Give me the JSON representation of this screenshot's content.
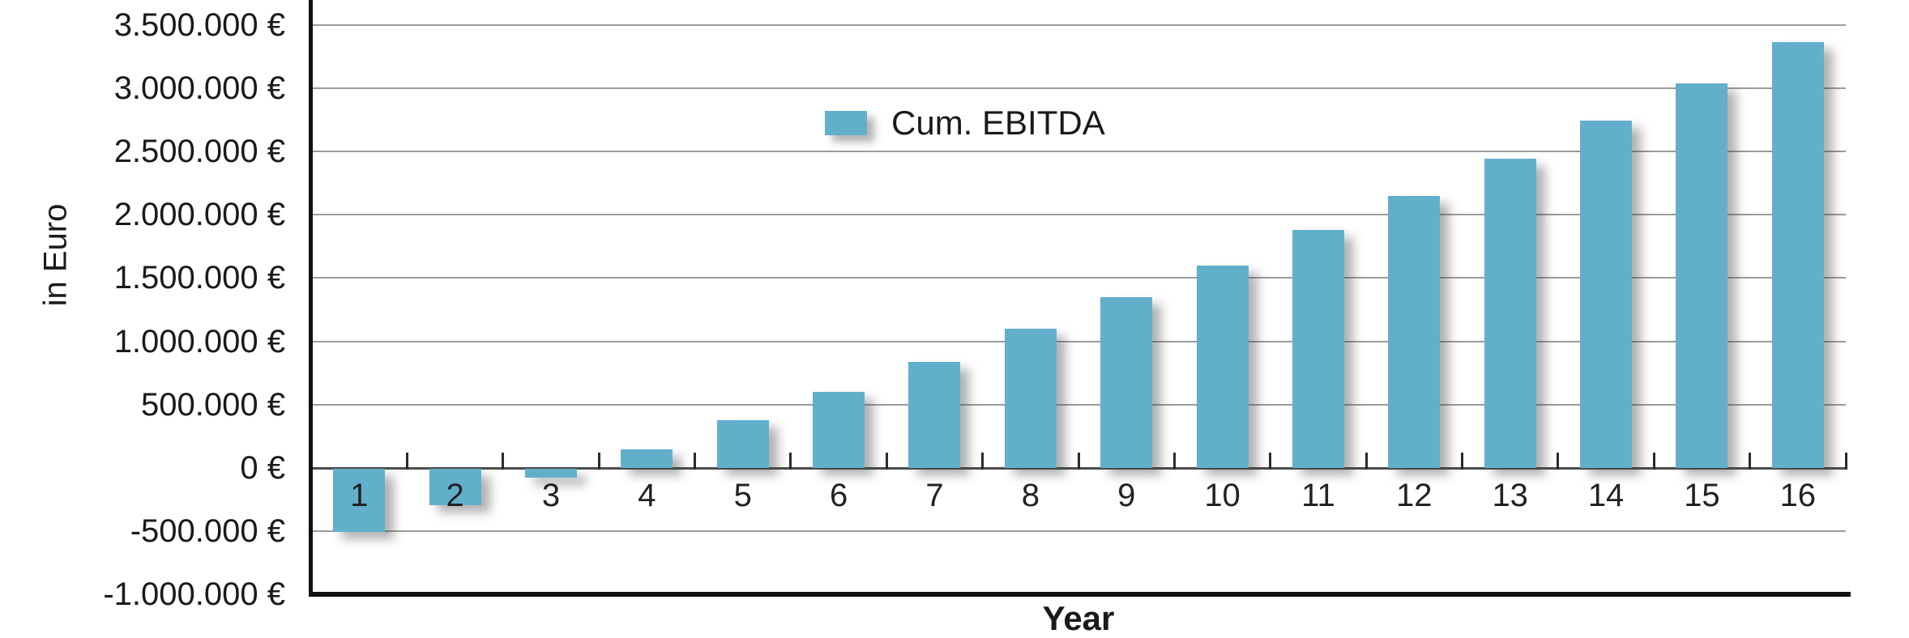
{
  "chart_data": {
    "type": "bar",
    "title": "",
    "xlabel": "Year",
    "ylabel": "in Euro",
    "legend": {
      "label": "Cum. EBITDA",
      "position": "top-center"
    },
    "categories": [
      "1",
      "2",
      "3",
      "4",
      "5",
      "6",
      "7",
      "8",
      "9",
      "10",
      "11",
      "12",
      "13",
      "14",
      "15",
      "16"
    ],
    "series": [
      {
        "name": "Cum. EBITDA",
        "values": [
          -500000,
          -290000,
          -70000,
          150000,
          380000,
          600000,
          840000,
          1100000,
          1350000,
          1600000,
          1880000,
          2150000,
          2440000,
          2740000,
          3040000,
          3360000
        ]
      }
    ],
    "ylim": [
      -1000000,
      3500000
    ],
    "ytick_step": 500000,
    "yticks": [
      {
        "value": 3500000,
        "label": "3.500.000 €"
      },
      {
        "value": 3000000,
        "label": "3.000.000 €"
      },
      {
        "value": 2500000,
        "label": "2.500.000 €"
      },
      {
        "value": 2000000,
        "label": "2.000.000 €"
      },
      {
        "value": 1500000,
        "label": "1.500.000 €"
      },
      {
        "value": 1000000,
        "label": "1.000.000 €"
      },
      {
        "value": 500000,
        "label": "500.000 €"
      },
      {
        "value": 0,
        "label": "0 €"
      },
      {
        "value": -500000,
        "label": "-500.000 €"
      },
      {
        "value": -1000000,
        "label": "-1.000.000 €"
      }
    ],
    "grid": true,
    "colors": {
      "bar": "#62afcc",
      "gridline": "#9b9b9b",
      "zero_line": "#4d4d4d",
      "axis": "#111111",
      "text": "#1a1a1a"
    }
  }
}
